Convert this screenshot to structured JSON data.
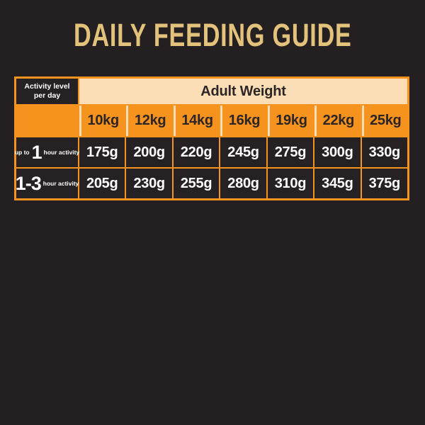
{
  "title": "DAILY FEEDING GUIDE",
  "table": {
    "corner": {
      "line1": "Activity level",
      "line2": "per day"
    },
    "span_header": "Adult Weight",
    "weights": [
      "10kg",
      "12kg",
      "14kg",
      "16kg",
      "19kg",
      "22kg",
      "25kg"
    ],
    "rows": [
      {
        "label": {
          "prefix": "up to",
          "big": "1",
          "suffix": "hour activity"
        },
        "values": [
          "175g",
          "200g",
          "220g",
          "245g",
          "275g",
          "300g",
          "330g"
        ]
      },
      {
        "label": {
          "prefix": "",
          "big": "1-3",
          "suffix": "hour activity"
        },
        "values": [
          "205g",
          "230g",
          "255g",
          "280g",
          "310g",
          "345g",
          "375g"
        ]
      }
    ]
  },
  "colors": {
    "background": "#242021",
    "title_gold": "#e3c37c",
    "orange": "#f6921e",
    "cream": "#fcdeb6",
    "cell_dark": "#262122",
    "text_light": "#ffffff",
    "text_dark": "#2b2526"
  }
}
